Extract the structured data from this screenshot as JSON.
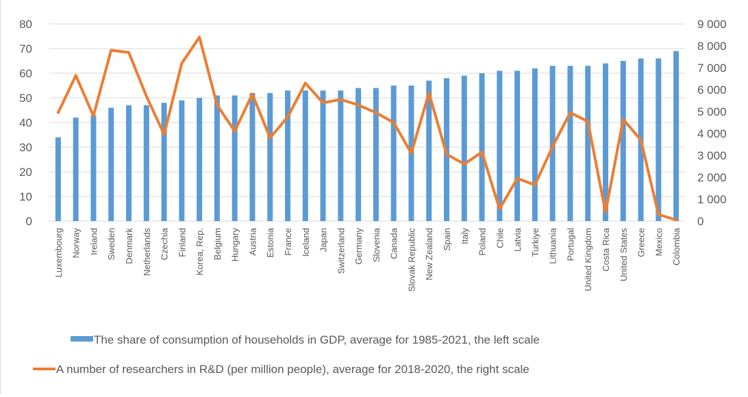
{
  "chart_data": {
    "type": "bar",
    "categories": [
      "Luxembourg",
      "Norway",
      "Ireland",
      "Sweden",
      "Denmark",
      "Netherlands",
      "Czechia",
      "Finland",
      "Korea, Rep.",
      "Belgium",
      "Hungary",
      "Austria",
      "Estonia",
      "France",
      "Iceland",
      "Japan",
      "Switzerland",
      "Germany",
      "Slovenia",
      "Canada",
      "Slovak Republic",
      "New Zealand",
      "Spain",
      "Italy",
      "Poland",
      "Chile",
      "Latvia",
      "Turkiye",
      "Lithuania",
      "Portugal",
      "United Kingdom",
      "Costa Rica",
      "United States",
      "Greece",
      "Mexico",
      "Colombia"
    ],
    "series": [
      {
        "name": "The share of consumption of households in GDP, average for 1985-2021, the left scale",
        "type": "bar",
        "axis": "left",
        "color": "#5b9bd5",
        "values": [
          34,
          42,
          43,
          46,
          47,
          47,
          48,
          49,
          50,
          51,
          51,
          52,
          52,
          53,
          53,
          53,
          53,
          54,
          54,
          55,
          55,
          57,
          58,
          59,
          60,
          61,
          61,
          62,
          63,
          63,
          63,
          64,
          65,
          66,
          66,
          69
        ]
      },
      {
        "name": "A number of researchers in R&D (per million people), average for 2018-2020, the right scale",
        "type": "line",
        "axis": "right",
        "color": "#ed7d31",
        "values": [
          4950,
          6650,
          4800,
          7800,
          7700,
          5700,
          3950,
          7200,
          8400,
          5300,
          4100,
          5800,
          3800,
          4750,
          6300,
          5400,
          5550,
          5300,
          4950,
          4500,
          3100,
          5850,
          3050,
          2600,
          3150,
          550,
          1950,
          1650,
          3400,
          4950,
          4550,
          400,
          4650,
          3700,
          300,
          50
        ]
      }
    ],
    "y_left": {
      "min": 0,
      "max": 80,
      "ticks": [
        "0",
        "10",
        "20",
        "30",
        "40",
        "50",
        "60",
        "70",
        "80"
      ]
    },
    "y_right": {
      "min": 0,
      "max": 9000,
      "ticks": [
        "0",
        "1 000",
        "2 000",
        "3 000",
        "4 000",
        "5 000",
        "6 000",
        "7 000",
        "8 000",
        "9 000"
      ]
    },
    "grid": true,
    "legend": {
      "position": "bottom",
      "entries": [
        {
          "label": "The share of consumption of households in GDP, average for 1985-2021, the left scale",
          "marker": "bar",
          "color": "#5b9bd5"
        },
        {
          "label": "A number of researchers in R&D (per million people), average for 2018-2020, the right scale",
          "marker": "line",
          "color": "#ed7d31"
        }
      ]
    },
    "gridColor": "#d9d9d9",
    "textColor": "#595959"
  }
}
